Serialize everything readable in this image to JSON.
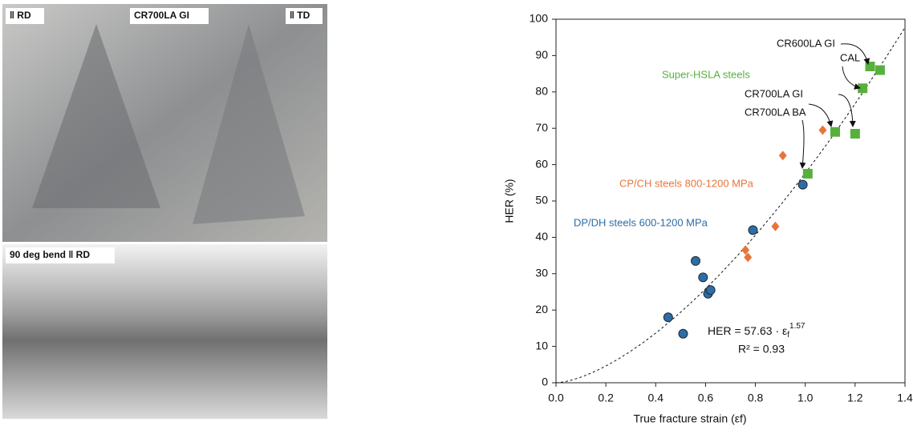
{
  "photos": {
    "labels": [
      "‖ RD",
      "CR700LA GI",
      "‖ TD",
      "90 deg bend ‖ RD"
    ]
  },
  "chart_data": {
    "type": "scatter",
    "x_label": "True fracture strain (εf)",
    "y_label": "HER (%)",
    "xlim": [
      0,
      1.4
    ],
    "ylim": [
      0,
      100
    ],
    "xticks": [
      {
        "value": 0,
        "label": "0.0"
      },
      0.2,
      0.4,
      0.6,
      0.8,
      {
        "value": 1,
        "label": "1.0"
      },
      1.2,
      1.4
    ],
    "yticks": [
      0,
      10,
      20,
      30,
      40,
      50,
      60,
      70,
      80,
      90,
      100
    ],
    "series": [
      {
        "name": "DP/DH steels 600-1200 MPa",
        "color": "#2e6da4",
        "marker": "circle",
        "x": [
          0.45,
          0.51,
          0.56,
          0.59,
          0.61,
          0.62,
          0.79,
          0.99
        ],
        "values": [
          18,
          13.5,
          33.5,
          29,
          24.5,
          25.5,
          42,
          54.5
        ]
      },
      {
        "name": "CP/CH steels 800-1200 MPa",
        "color": "#e8743b",
        "marker": "diamond",
        "x": [
          0.76,
          0.77,
          0.88,
          0.91,
          1.07
        ],
        "values": [
          36.5,
          34.5,
          43,
          62.5,
          69.5
        ]
      },
      {
        "name": "Super-HSLA steels",
        "color": "#58b03c",
        "marker": "square",
        "x": [
          1.01,
          1.12,
          1.2,
          1.23,
          1.26,
          1.3
        ],
        "values": [
          57.5,
          69,
          68.5,
          81,
          87,
          86
        ]
      }
    ],
    "fit": {
      "coef": 57.63,
      "exponent": 1.57,
      "equation": [
        "HER = 57.63 · ε",
        "f",
        "1.57"
      ],
      "r2": "R² = 0.93"
    },
    "annotations": [
      "CR600LA GI",
      "CAL",
      "CR700LA GI",
      "CR700LA BA"
    ]
  }
}
